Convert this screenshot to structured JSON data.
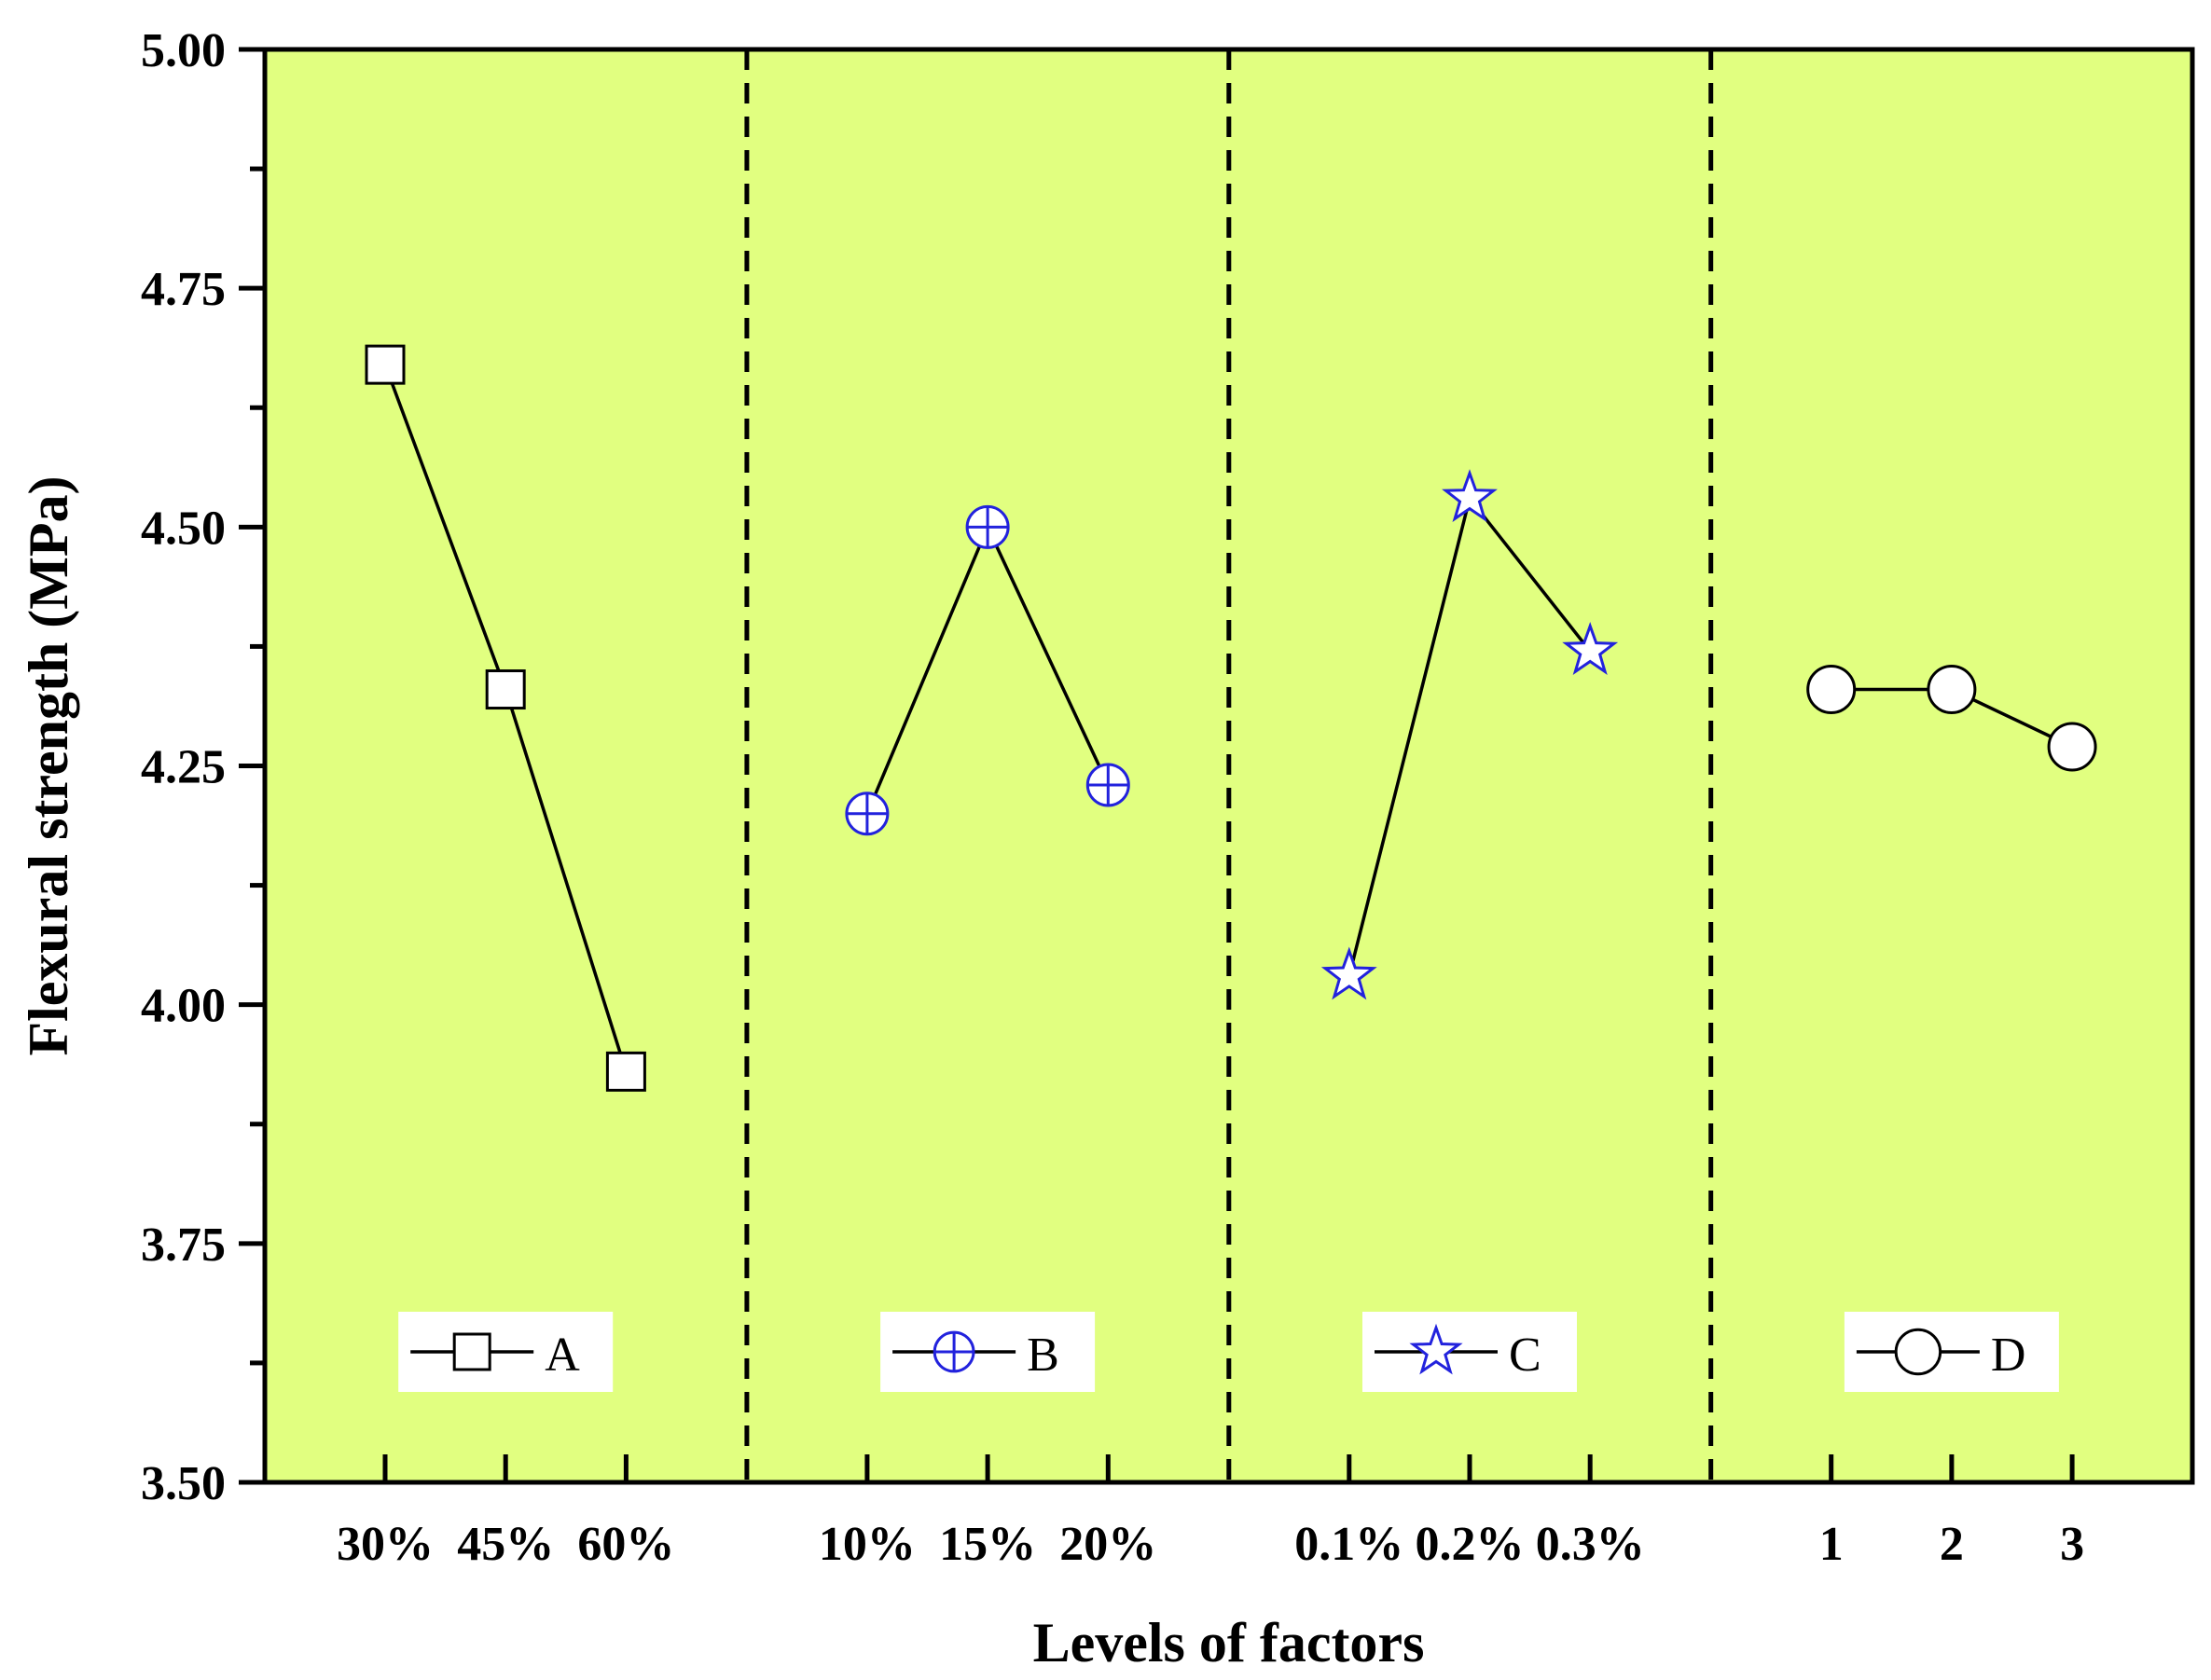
{
  "chart_data": {
    "type": "line",
    "title": "",
    "xlabel": "Levels of factors",
    "ylabel": "Flexural strength (MPa)",
    "ylim": [
      3.5,
      5.0
    ],
    "yticks": [
      "3.50",
      "3.75",
      "4.00",
      "4.25",
      "4.50",
      "4.75",
      "5.00"
    ],
    "grid": false,
    "background_color": "#e1ff80",
    "series": [
      {
        "name": "A",
        "marker": "square",
        "color": "#000000",
        "categories": [
          "30%",
          "45%",
          "60%"
        ],
        "values": [
          4.67,
          4.33,
          3.93
        ]
      },
      {
        "name": "B",
        "marker": "circle-plus",
        "color": "#2222dd",
        "categories": [
          "10%",
          "15%",
          "20%"
        ],
        "values": [
          4.2,
          4.5,
          4.23
        ]
      },
      {
        "name": "C",
        "marker": "star",
        "color": "#2222dd",
        "categories": [
          "0.1%",
          "0.2%",
          "0.3%"
        ],
        "values": [
          4.03,
          4.53,
          4.37
        ]
      },
      {
        "name": "D",
        "marker": "circle",
        "color": "#000000",
        "categories": [
          "1",
          "2",
          "3"
        ],
        "values": [
          4.33,
          4.33,
          4.27
        ]
      }
    ]
  }
}
